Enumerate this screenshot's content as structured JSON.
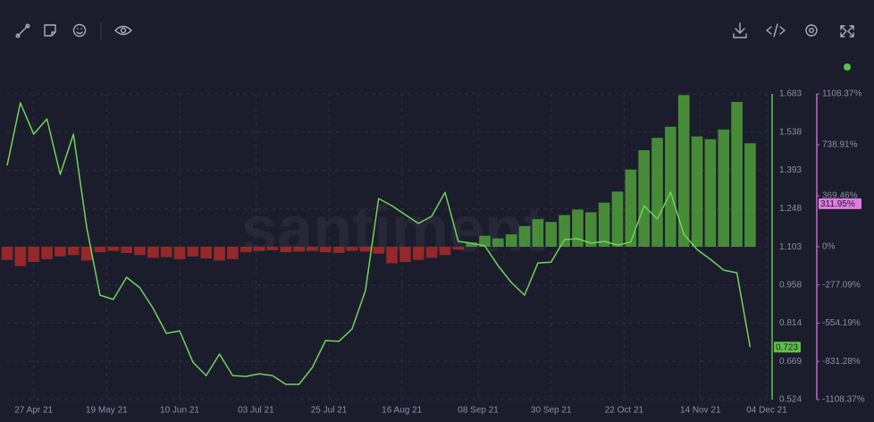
{
  "chart_data": {
    "type": "combo",
    "watermark": "santiment",
    "x": [
      "2021-04-19",
      "2021-04-23",
      "2021-04-27",
      "2021-05-01",
      "2021-05-05",
      "2021-05-09",
      "2021-05-13",
      "2021-05-17",
      "2021-05-21",
      "2021-05-25",
      "2021-05-29",
      "2021-06-02",
      "2021-06-06",
      "2021-06-10",
      "2021-06-14",
      "2021-06-18",
      "2021-06-22",
      "2021-06-26",
      "2021-06-30",
      "2021-07-04",
      "2021-07-08",
      "2021-07-12",
      "2021-07-16",
      "2021-07-20",
      "2021-07-24",
      "2021-07-28",
      "2021-08-01",
      "2021-08-05",
      "2021-08-09",
      "2021-08-13",
      "2021-08-17",
      "2021-08-21",
      "2021-08-25",
      "2021-08-29",
      "2021-09-02",
      "2021-09-06",
      "2021-09-10",
      "2021-09-14",
      "2021-09-18",
      "2021-09-22",
      "2021-09-26",
      "2021-09-30",
      "2021-10-04",
      "2021-10-08",
      "2021-10-12",
      "2021-10-16",
      "2021-10-20",
      "2021-10-24",
      "2021-10-28",
      "2021-11-01",
      "2021-11-05",
      "2021-11-09",
      "2021-11-13",
      "2021-11-17",
      "2021-11-21",
      "2021-11-25",
      "2021-11-29"
    ],
    "series": [
      {
        "type": "bar",
        "axis": "y2",
        "color": "#4f9f3b",
        "negative_color": "#a92a2a",
        "values": [
          -95,
          -140,
          -110,
          -90,
          -70,
          -60,
          -100,
          -40,
          -30,
          -45,
          -60,
          -80,
          -75,
          -90,
          -70,
          -85,
          -100,
          -90,
          -40,
          -30,
          -25,
          -40,
          -35,
          -30,
          -40,
          -45,
          -30,
          -35,
          -50,
          -120,
          -110,
          -95,
          -80,
          -60,
          -20,
          30,
          80,
          60,
          90,
          150,
          200,
          180,
          230,
          270,
          250,
          320,
          400,
          560,
          700,
          790,
          870,
          1100,
          800,
          780,
          850,
          1050,
          750
        ]
      },
      {
        "type": "line",
        "axis": "y",
        "color": "#6fd35a",
        "values": [
          1.412,
          1.649,
          1.53,
          1.588,
          1.378,
          1.53,
          1.175,
          0.92,
          0.904,
          0.988,
          0.948,
          0.87,
          0.775,
          0.785,
          0.666,
          0.615,
          0.697,
          0.615,
          0.612,
          0.622,
          0.615,
          0.582,
          0.582,
          0.646,
          0.748,
          0.745,
          0.792,
          0.937,
          1.286,
          1.259,
          1.225,
          1.192,
          1.219,
          1.31,
          1.124,
          1.117,
          1.107,
          1.032,
          0.968,
          0.92,
          1.042,
          1.045,
          1.131,
          1.134,
          1.117,
          1.124,
          1.11,
          1.121,
          1.259,
          1.209,
          1.31,
          1.151,
          1.093,
          1.056,
          1.015,
          1.005,
          0.723
        ]
      }
    ],
    "xlim": [
      "2021-04-19",
      "2021-12-04"
    ],
    "xticks": [
      {
        "value": "2021-04-27",
        "label": "27 Apr 21"
      },
      {
        "value": "2021-05-19",
        "label": "19 May 21"
      },
      {
        "value": "2021-06-10",
        "label": "10 Jun 21"
      },
      {
        "value": "2021-07-03",
        "label": "03 Jul 21"
      },
      {
        "value": "2021-07-25",
        "label": "25 Jul 21"
      },
      {
        "value": "2021-08-16",
        "label": "16 Aug 21"
      },
      {
        "value": "2021-09-08",
        "label": "08 Sep 21"
      },
      {
        "value": "2021-09-30",
        "label": "30 Sep 21"
      },
      {
        "value": "2021-10-22",
        "label": "22 Oct 21"
      },
      {
        "value": "2021-11-14",
        "label": "14 Nov 21"
      },
      {
        "value": "2021-12-04",
        "label": "04 Dec 21"
      }
    ],
    "ylim": [
      0.524,
      1.683
    ],
    "yticks": [
      1.683,
      1.538,
      1.393,
      1.248,
      1.103,
      0.958,
      0.814,
      0.669,
      0.524
    ],
    "y_axis_color": "#5cc247",
    "y2lim": [
      -1108.37,
      1108.37
    ],
    "y2ticks": [
      {
        "value": 1108.37,
        "label": "1108.37%"
      },
      {
        "value": 738.91,
        "label": "738.91%"
      },
      {
        "value": 369.46,
        "label": "369.46%"
      },
      {
        "value": 0,
        "label": "0%"
      },
      {
        "value": -277.09,
        "label": "-277.09%"
      },
      {
        "value": -554.19,
        "label": "-554.19%"
      },
      {
        "value": -831.28,
        "label": "-831.28%"
      },
      {
        "value": -1108.37,
        "label": "-1108.37%"
      }
    ],
    "y2_axis_color": "#c867c8",
    "grid": true,
    "annotations": [
      {
        "value": 0.723,
        "label": "0.723",
        "axis": "y",
        "color": "#5cc247"
      },
      {
        "value": 311.95,
        "label": "311.95%",
        "axis": "y2",
        "color": "#e07be0"
      }
    ]
  }
}
